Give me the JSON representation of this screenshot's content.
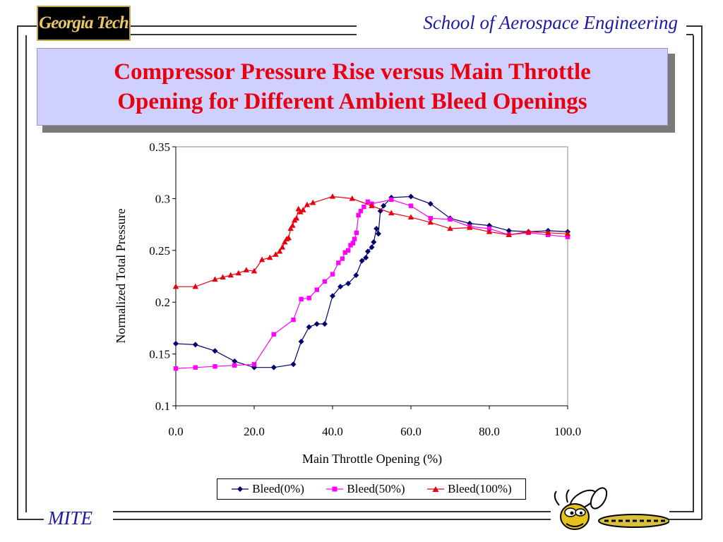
{
  "header": {
    "logo_text": "Georgia Tech",
    "school": "School of Aerospace Engineering"
  },
  "title": {
    "line1": "Compressor Pressure Rise versus Main Throttle",
    "line2": "Opening for Different Ambient Bleed Openings"
  },
  "footer": {
    "label": "MITE"
  },
  "colors": {
    "title": "#e8000e",
    "header_text": "#1a1aa6",
    "title_box": "#d0d0ff"
  },
  "icons": {
    "mascot": "yellow-jacket-icon"
  },
  "chart_data": {
    "type": "line",
    "title": "",
    "xlabel": "Main Throttle Opening (%)",
    "ylabel": "Normalized Total Pressure",
    "xlim": [
      0,
      100
    ],
    "ylim": [
      0.1,
      0.35
    ],
    "xticks": [
      "0.0",
      "20.0",
      "40.0",
      "60.0",
      "80.0",
      "100.0"
    ],
    "yticks": [
      "0.1",
      "0.15",
      "0.2",
      "0.25",
      "0.3",
      "0.35"
    ],
    "grid": false,
    "legend_position": "bottom",
    "series": [
      {
        "name": "Bleed(0%)",
        "color": "#00006e",
        "marker": "diamond",
        "points": [
          [
            0,
            0.16
          ],
          [
            5,
            0.159
          ],
          [
            10,
            0.153
          ],
          [
            15,
            0.143
          ],
          [
            20,
            0.137
          ],
          [
            25,
            0.137
          ],
          [
            30,
            0.14
          ],
          [
            32,
            0.162
          ],
          [
            34,
            0.176
          ],
          [
            36,
            0.179
          ],
          [
            38,
            0.179
          ],
          [
            40,
            0.206
          ],
          [
            42,
            0.215
          ],
          [
            44,
            0.218
          ],
          [
            46,
            0.226
          ],
          [
            47.5,
            0.24
          ],
          [
            48.5,
            0.243
          ],
          [
            49,
            0.249
          ],
          [
            50,
            0.253
          ],
          [
            50.5,
            0.258
          ],
          [
            51.2,
            0.271
          ],
          [
            51.7,
            0.266
          ],
          [
            52.2,
            0.288
          ],
          [
            53,
            0.293
          ],
          [
            55,
            0.301
          ],
          [
            60,
            0.302
          ],
          [
            65,
            0.295
          ],
          [
            70,
            0.281
          ],
          [
            75,
            0.276
          ],
          [
            80,
            0.274
          ],
          [
            85,
            0.269
          ],
          [
            90,
            0.268
          ],
          [
            95,
            0.269
          ],
          [
            100,
            0.268
          ]
        ]
      },
      {
        "name": "Bleed(50%)",
        "color": "#ff00ff",
        "marker": "square",
        "points": [
          [
            0,
            0.136
          ],
          [
            5,
            0.137
          ],
          [
            10,
            0.138
          ],
          [
            15,
            0.139
          ],
          [
            20,
            0.14
          ],
          [
            25,
            0.169
          ],
          [
            30,
            0.183
          ],
          [
            32,
            0.203
          ],
          [
            34,
            0.204
          ],
          [
            36,
            0.212
          ],
          [
            38,
            0.22
          ],
          [
            40,
            0.227
          ],
          [
            41.5,
            0.238
          ],
          [
            42.5,
            0.242
          ],
          [
            43.2,
            0.248
          ],
          [
            44,
            0.25
          ],
          [
            44.6,
            0.255
          ],
          [
            45.2,
            0.257
          ],
          [
            45.6,
            0.261
          ],
          [
            46.1,
            0.267
          ],
          [
            46.6,
            0.284
          ],
          [
            47.2,
            0.288
          ],
          [
            48,
            0.292
          ],
          [
            49,
            0.297
          ],
          [
            50,
            0.295
          ],
          [
            55,
            0.299
          ],
          [
            60,
            0.293
          ],
          [
            65,
            0.281
          ],
          [
            70,
            0.28
          ],
          [
            75,
            0.273
          ],
          [
            80,
            0.271
          ],
          [
            85,
            0.265
          ],
          [
            90,
            0.267
          ],
          [
            95,
            0.265
          ],
          [
            100,
            0.263
          ]
        ]
      },
      {
        "name": "Bleed(100%)",
        "color": "#e8000e",
        "marker": "triangle",
        "points": [
          [
            0,
            0.215
          ],
          [
            5,
            0.215
          ],
          [
            10,
            0.222
          ],
          [
            12,
            0.224
          ],
          [
            14,
            0.226
          ],
          [
            16,
            0.228
          ],
          [
            18,
            0.231
          ],
          [
            20,
            0.23
          ],
          [
            22,
            0.241
          ],
          [
            24,
            0.243
          ],
          [
            25.5,
            0.246
          ],
          [
            26.5,
            0.249
          ],
          [
            27.2,
            0.253
          ],
          [
            27.8,
            0.258
          ],
          [
            28.3,
            0.261
          ],
          [
            28.8,
            0.262
          ],
          [
            29.3,
            0.271
          ],
          [
            29.8,
            0.274
          ],
          [
            30.3,
            0.279
          ],
          [
            30.8,
            0.281
          ],
          [
            31.3,
            0.29
          ],
          [
            31.8,
            0.287
          ],
          [
            32.5,
            0.289
          ],
          [
            33.5,
            0.294
          ],
          [
            35,
            0.296
          ],
          [
            40,
            0.302
          ],
          [
            45,
            0.3
          ],
          [
            50,
            0.293
          ],
          [
            55,
            0.286
          ],
          [
            60,
            0.282
          ],
          [
            65,
            0.277
          ],
          [
            70,
            0.271
          ],
          [
            75,
            0.272
          ],
          [
            80,
            0.268
          ],
          [
            85,
            0.265
          ],
          [
            90,
            0.268
          ],
          [
            95,
            0.267
          ],
          [
            100,
            0.266
          ]
        ]
      }
    ]
  }
}
